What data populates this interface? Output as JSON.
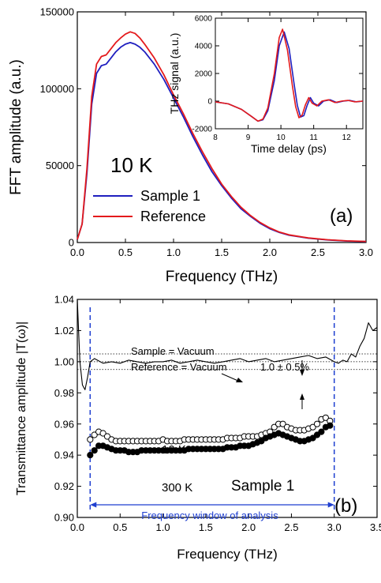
{
  "chart_data": [
    {
      "type": "line",
      "panel_label": "(a)",
      "annotation": "10 K",
      "xlabel": "Frequency (THz)",
      "ylabel": "FFT amplitude (a.u.)",
      "xlim": [
        0,
        3.0
      ],
      "ylim": [
        0,
        150000
      ],
      "x_ticks": [
        "0.0",
        "0.5",
        "1.0",
        "1.5",
        "2.0",
        "2.5",
        "3.0"
      ],
      "y_ticks": [
        "0",
        "50000",
        "100000",
        "150000"
      ],
      "legend_position": "lower-left",
      "series": [
        {
          "name": "Sample 1",
          "color": "#1f1fbf",
          "x": [
            0,
            0.05,
            0.1,
            0.15,
            0.2,
            0.25,
            0.3,
            0.35,
            0.4,
            0.45,
            0.5,
            0.55,
            0.6,
            0.65,
            0.7,
            0.8,
            0.9,
            1.0,
            1.1,
            1.2,
            1.3,
            1.4,
            1.5,
            1.6,
            1.7,
            1.8,
            1.9,
            2.0,
            2.1,
            2.2,
            2.4,
            2.6,
            2.8,
            3.0
          ],
          "y": [
            2000,
            12000,
            45000,
            90000,
            110000,
            115000,
            116000,
            120000,
            124000,
            127000,
            129000,
            130000,
            129000,
            127000,
            124000,
            116000,
            106000,
            94000,
            82000,
            69000,
            57000,
            46000,
            37000,
            29000,
            22000,
            17000,
            12500,
            9000,
            6500,
            4800,
            2800,
            1700,
            1000,
            600
          ]
        },
        {
          "name": "Reference",
          "color": "#e41a1c",
          "x": [
            0,
            0.05,
            0.1,
            0.15,
            0.2,
            0.25,
            0.3,
            0.35,
            0.4,
            0.45,
            0.5,
            0.55,
            0.6,
            0.65,
            0.7,
            0.8,
            0.9,
            1.0,
            1.1,
            1.2,
            1.3,
            1.4,
            1.5,
            1.6,
            1.7,
            1.8,
            1.9,
            2.0,
            2.1,
            2.2,
            2.4,
            2.6,
            2.8,
            3.0
          ],
          "y": [
            2000,
            12000,
            48000,
            95000,
            116000,
            121000,
            122000,
            126000,
            130000,
            133000,
            135500,
            137000,
            136000,
            133000,
            129000,
            120000,
            109000,
            96000,
            84000,
            71000,
            59000,
            48000,
            38000,
            30000,
            23000,
            17500,
            13000,
            9500,
            6800,
            5000,
            3000,
            1800,
            1100,
            700
          ]
        }
      ],
      "inset": {
        "type": "line",
        "xlabel": "Time delay (ps)",
        "ylabel": "THz signal (a.u.)",
        "xlim": [
          8,
          12.5
        ],
        "ylim": [
          -2000,
          6000
        ],
        "x_ticks": [
          "8",
          "9",
          "10",
          "11",
          "12"
        ],
        "y_ticks": [
          "-2000",
          "0",
          "2000",
          "4000",
          "6000"
        ],
        "series": [
          {
            "name": "Sample 1",
            "color": "#1f1fbf",
            "x": [
              8.0,
              8.4,
              8.8,
              9.1,
              9.3,
              9.45,
              9.6,
              9.8,
              9.95,
              10.1,
              10.25,
              10.4,
              10.5,
              10.6,
              10.7,
              10.8,
              10.9,
              11.0,
              11.15,
              11.3,
              11.5,
              11.7,
              11.9,
              12.1,
              12.3,
              12.5
            ],
            "y": [
              -50,
              -200,
              -600,
              -1100,
              -1450,
              -1350,
              -700,
              1500,
              4000,
              5000,
              3800,
              1300,
              -300,
              -1150,
              -1050,
              -300,
              250,
              -150,
              -350,
              0,
              100,
              -100,
              0,
              50,
              -50,
              0
            ]
          },
          {
            "name": "Reference",
            "color": "#e41a1c",
            "x": [
              8.0,
              8.4,
              8.8,
              9.1,
              9.3,
              9.45,
              9.6,
              9.8,
              9.95,
              10.05,
              10.2,
              10.35,
              10.45,
              10.55,
              10.65,
              10.75,
              10.85,
              10.95,
              11.1,
              11.25,
              11.45,
              11.65,
              11.85,
              12.05,
              12.25,
              12.5
            ],
            "y": [
              -50,
              -200,
              -600,
              -1100,
              -1450,
              -1300,
              -500,
              2000,
              4600,
              5200,
              3700,
              1100,
              -400,
              -1200,
              -1000,
              -250,
              250,
              -150,
              -350,
              0,
              100,
              -100,
              0,
              50,
              -50,
              0
            ]
          }
        ]
      }
    },
    {
      "type": "line",
      "panel_label": "(b)",
      "xlabel": "Frequency (THz)",
      "ylabel": "Transmittance amplitude |T(ω)|",
      "xlim": [
        0,
        3.5
      ],
      "ylim": [
        0.9,
        1.04
      ],
      "x_ticks": [
        "0.0",
        "0.5",
        "1.0",
        "1.5",
        "2.0",
        "2.5",
        "3.0",
        "3.5"
      ],
      "y_ticks": [
        "0.90",
        "0.92",
        "0.94",
        "0.96",
        "0.98",
        "1.00",
        "1.02",
        "1.04"
      ],
      "annotations": {
        "sample_vacuum": "Sample = Vacuum",
        "reference_vacuum": "Reference = Vacuum",
        "tolerance": "1.0 ± 0.5%",
        "label_10k": "10 K",
        "label_300k": "300 K",
        "sample_name": "Sample 1",
        "window": "Frequency window of analysis"
      },
      "reference_lines": [
        1.005,
        1.0,
        0.995
      ],
      "window_limits": [
        0.15,
        3.0
      ],
      "window_color": "#1f3fd0",
      "vacuum_line": {
        "x": [
          0.0,
          0.03,
          0.06,
          0.09,
          0.12,
          0.15,
          0.2,
          0.3,
          0.4,
          0.5,
          0.6,
          0.7,
          0.8,
          0.9,
          1.0,
          1.1,
          1.2,
          1.3,
          1.4,
          1.5,
          1.6,
          1.7,
          1.8,
          1.9,
          2.0,
          2.1,
          2.2,
          2.3,
          2.4,
          2.5,
          2.6,
          2.7,
          2.8,
          2.9,
          3.0,
          3.05,
          3.1,
          3.15,
          3.2,
          3.25,
          3.3,
          3.35,
          3.4,
          3.45,
          3.5
        ],
        "y": [
          1.04,
          1.0,
          0.985,
          0.982,
          0.99,
          1.0,
          1.002,
          0.999,
          1.0,
          0.999,
          1.001,
          1.0,
          0.999,
          1.0,
          1.0,
          1.001,
          0.999,
          1.0,
          1.001,
          1.0,
          0.999,
          1.0,
          1.001,
          1.002,
          1.0,
          1.001,
          1.002,
          1.0,
          1.001,
          1.002,
          1.003,
          1.004,
          1.002,
          1.003,
          1.0,
          0.999,
          1.001,
          1.0,
          1.005,
          1.003,
          1.01,
          1.015,
          1.025,
          1.02,
          1.022
        ]
      },
      "series": [
        {
          "name": "10 K",
          "marker": "open-circle",
          "x": [
            0.15,
            0.2,
            0.25,
            0.3,
            0.35,
            0.4,
            0.45,
            0.5,
            0.55,
            0.6,
            0.65,
            0.7,
            0.75,
            0.8,
            0.85,
            0.9,
            0.95,
            1.0,
            1.05,
            1.1,
            1.15,
            1.2,
            1.25,
            1.3,
            1.35,
            1.4,
            1.45,
            1.5,
            1.55,
            1.6,
            1.65,
            1.7,
            1.75,
            1.8,
            1.85,
            1.9,
            1.95,
            2.0,
            2.05,
            2.1,
            2.15,
            2.2,
            2.25,
            2.3,
            2.35,
            2.4,
            2.45,
            2.5,
            2.55,
            2.6,
            2.65,
            2.7,
            2.75,
            2.8,
            2.85,
            2.9,
            2.95
          ],
          "y": [
            0.95,
            0.953,
            0.955,
            0.954,
            0.952,
            0.95,
            0.949,
            0.949,
            0.949,
            0.949,
            0.949,
            0.949,
            0.949,
            0.949,
            0.949,
            0.949,
            0.949,
            0.95,
            0.949,
            0.949,
            0.949,
            0.949,
            0.95,
            0.95,
            0.95,
            0.95,
            0.95,
            0.95,
            0.95,
            0.95,
            0.95,
            0.95,
            0.951,
            0.951,
            0.951,
            0.951,
            0.952,
            0.952,
            0.952,
            0.952,
            0.953,
            0.954,
            0.955,
            0.958,
            0.96,
            0.96,
            0.958,
            0.957,
            0.956,
            0.956,
            0.956,
            0.957,
            0.958,
            0.96,
            0.963,
            0.964,
            0.962
          ]
        },
        {
          "name": "300 K",
          "marker": "filled-circle",
          "x": [
            0.15,
            0.2,
            0.25,
            0.3,
            0.35,
            0.4,
            0.45,
            0.5,
            0.55,
            0.6,
            0.65,
            0.7,
            0.75,
            0.8,
            0.85,
            0.9,
            0.95,
            1.0,
            1.05,
            1.1,
            1.15,
            1.2,
            1.25,
            1.3,
            1.35,
            1.4,
            1.45,
            1.5,
            1.55,
            1.6,
            1.65,
            1.7,
            1.75,
            1.8,
            1.85,
            1.9,
            1.95,
            2.0,
            2.05,
            2.1,
            2.15,
            2.2,
            2.25,
            2.3,
            2.35,
            2.4,
            2.45,
            2.5,
            2.55,
            2.6,
            2.65,
            2.7,
            2.75,
            2.8,
            2.85,
            2.9,
            2.95
          ],
          "y": [
            0.94,
            0.943,
            0.946,
            0.946,
            0.945,
            0.944,
            0.943,
            0.943,
            0.943,
            0.942,
            0.942,
            0.942,
            0.943,
            0.943,
            0.943,
            0.943,
            0.943,
            0.943,
            0.943,
            0.943,
            0.943,
            0.943,
            0.943,
            0.944,
            0.944,
            0.944,
            0.944,
            0.944,
            0.944,
            0.944,
            0.944,
            0.944,
            0.945,
            0.945,
            0.945,
            0.946,
            0.946,
            0.946,
            0.947,
            0.948,
            0.949,
            0.951,
            0.952,
            0.953,
            0.954,
            0.953,
            0.952,
            0.951,
            0.95,
            0.949,
            0.949,
            0.95,
            0.951,
            0.953,
            0.955,
            0.958,
            0.959
          ]
        }
      ]
    }
  ]
}
